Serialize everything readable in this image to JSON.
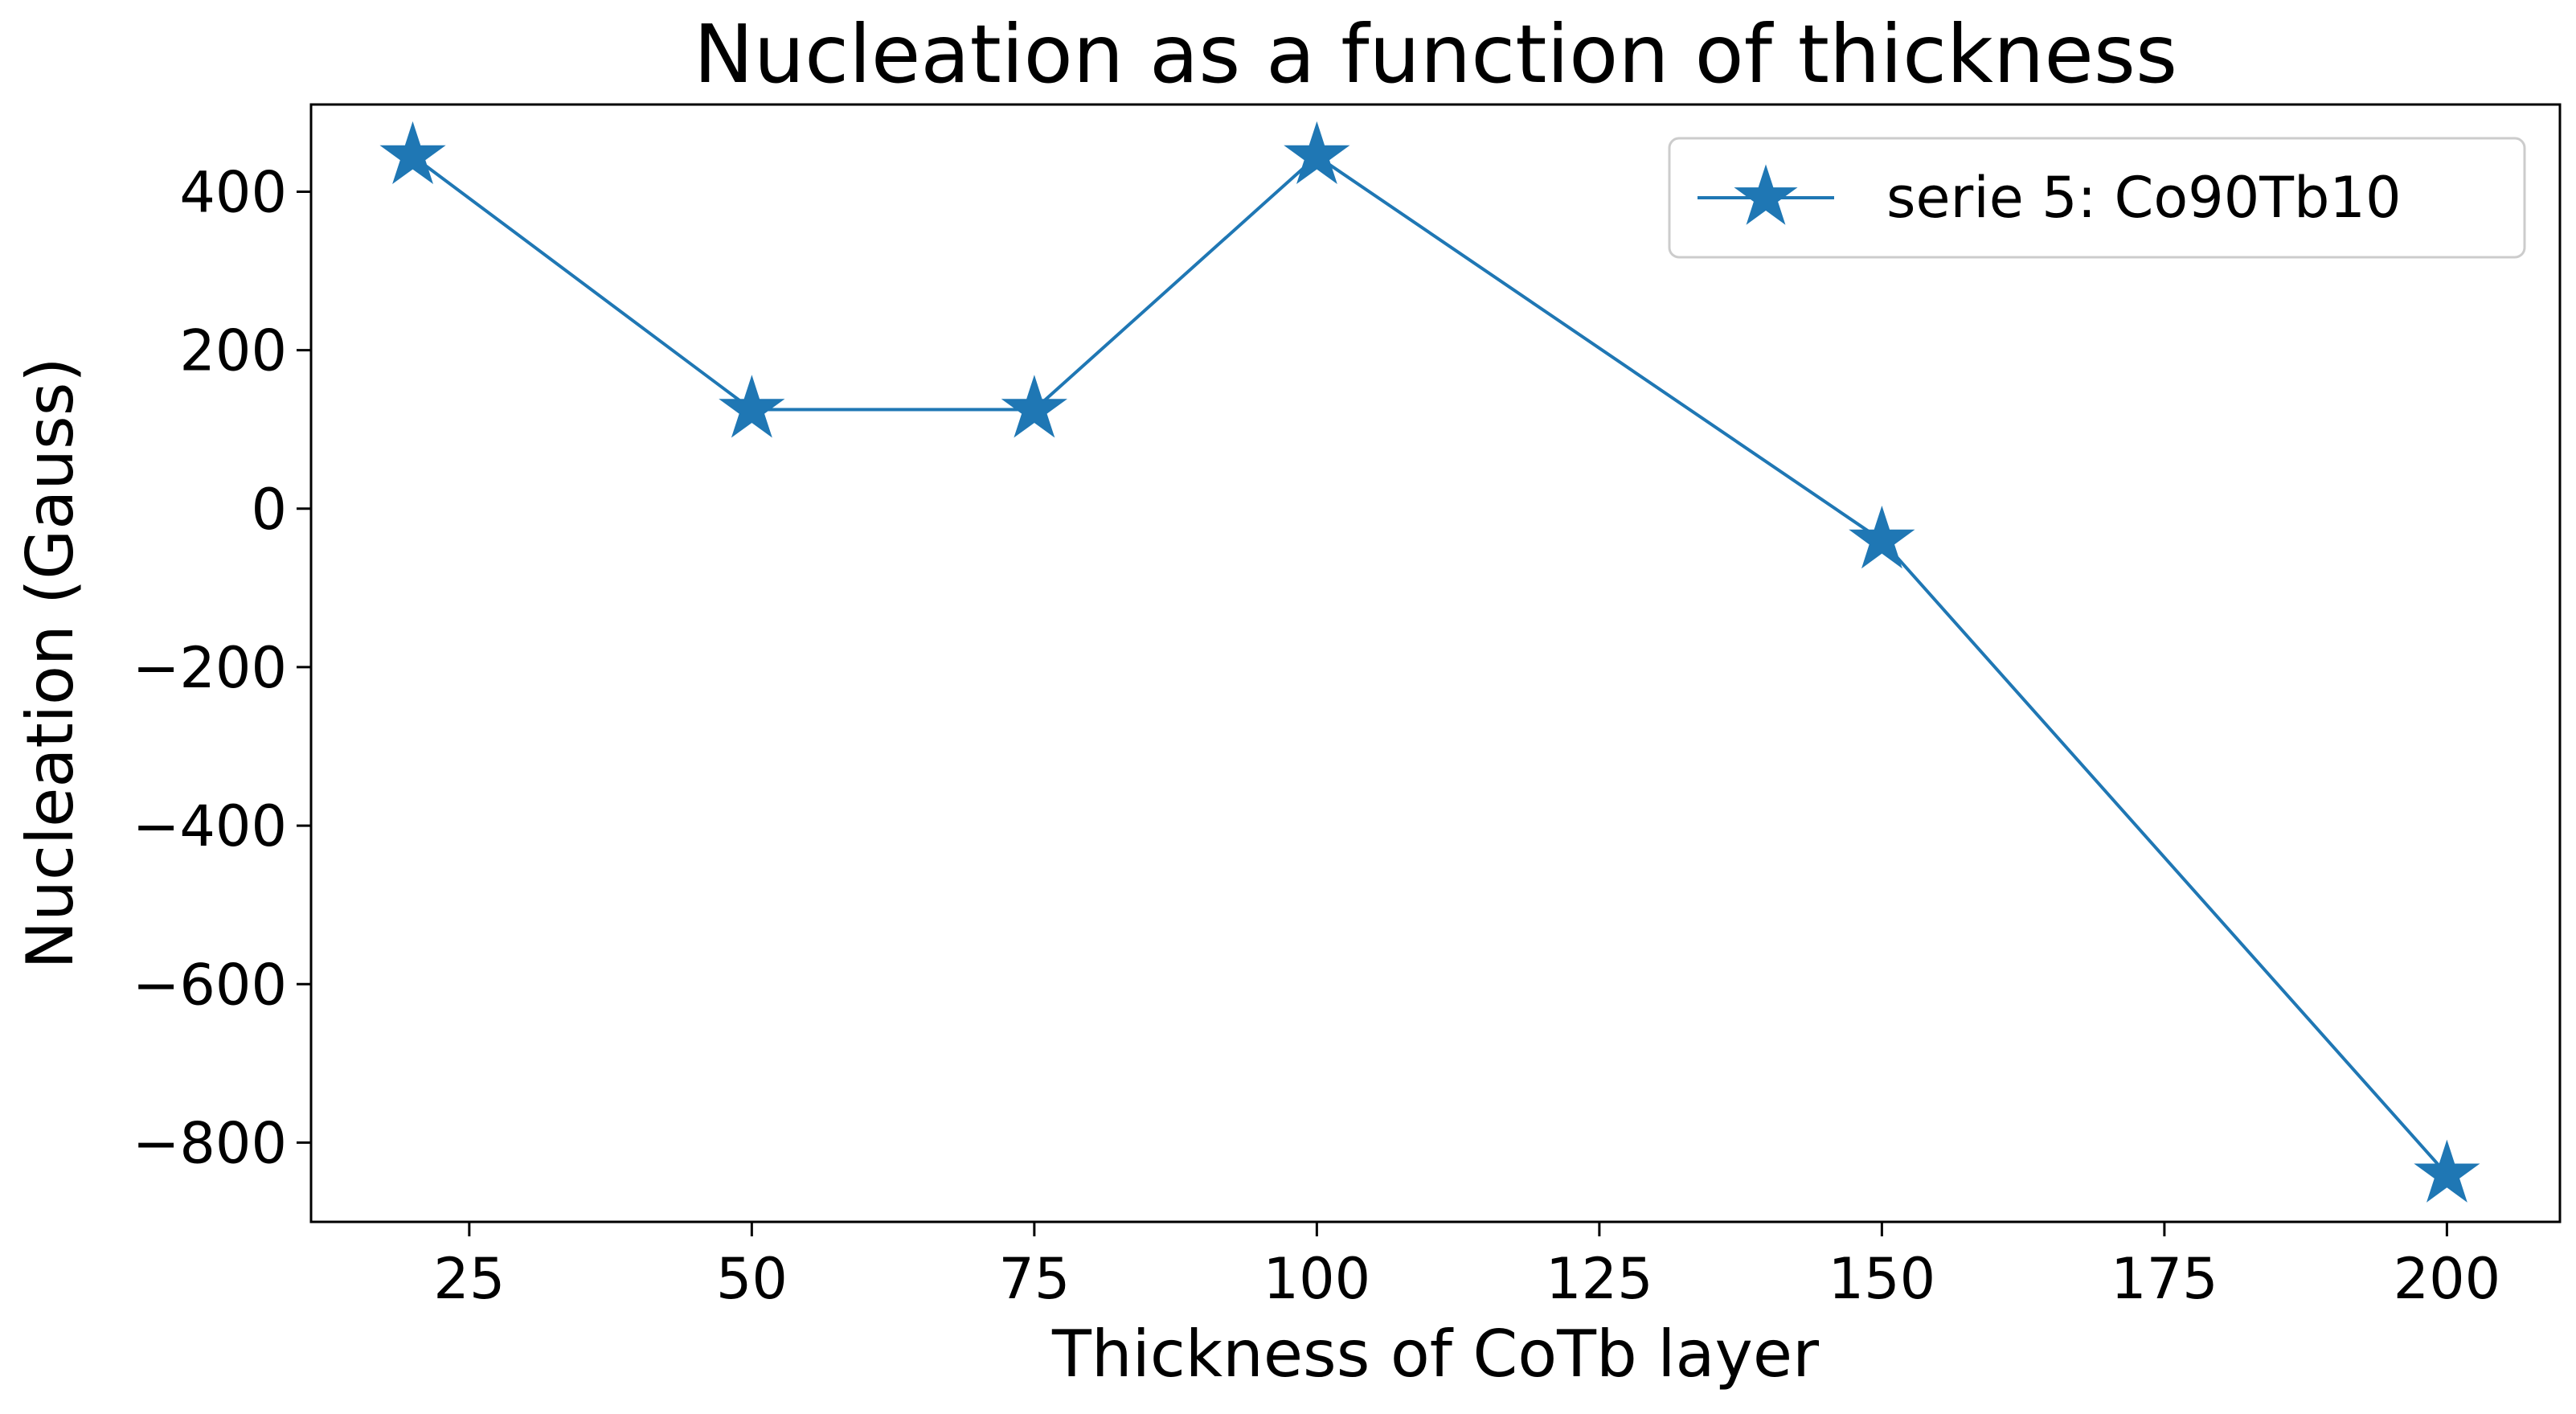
{
  "chart_data": {
    "type": "line",
    "title": "Nucleation as a function of thickness",
    "xlabel": "Thickness of CoTb layer",
    "ylabel": "Nucleation (Gauss)",
    "xlim": [
      11,
      210
    ],
    "ylim": [
      -900,
      510
    ],
    "xticks": [
      25,
      50,
      75,
      100,
      125,
      150,
      175,
      200
    ],
    "yticks": [
      -800,
      -600,
      -400,
      -200,
      0,
      200,
      400
    ],
    "xtick_labels": [
      "25",
      "50",
      "75",
      "100",
      "125",
      "150",
      "175",
      "200"
    ],
    "ytick_labels": [
      "−800",
      "−600",
      "−400",
      "−200",
      "0",
      "200",
      "400"
    ],
    "grid": false,
    "legend_position": "top-right",
    "series": [
      {
        "name": "serie 5: Co90Tb10",
        "color": "#1f77b4",
        "marker": "star",
        "x": [
          20,
          50,
          75,
          100,
          150,
          200
        ],
        "y": [
          445,
          125,
          125,
          445,
          -40,
          -840
        ]
      }
    ]
  }
}
